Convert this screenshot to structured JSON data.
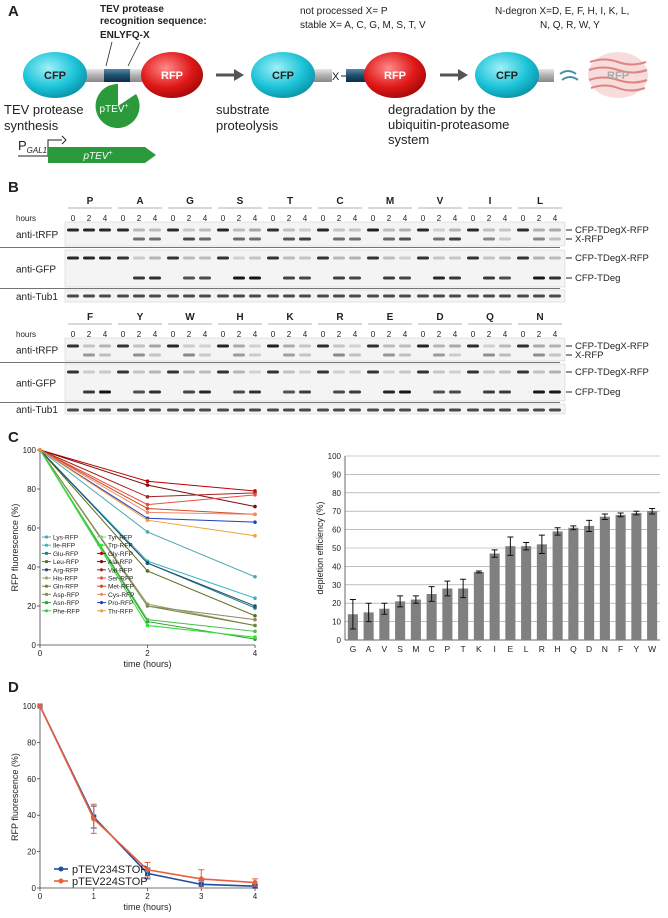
{
  "panel_labels": [
    "A",
    "B",
    "C",
    "D"
  ],
  "panel_a": {
    "tev_title_1": "TEV protease",
    "tev_title_2": "recognition sequence:",
    "sequence": "ENLYFQ-X",
    "not_processed": "not processed X= P",
    "stable": "stable X= A, C, G, M, S, T, V",
    "ndegron_1": "N-degron X=D, E, F, H, I, K, L,",
    "ndegron_2": "N, Q, R, W, Y",
    "cfp": "CFP",
    "rfp": "RFP",
    "x": "X",
    "synthesis_1": "TEV protease",
    "synthesis_2": "synthesis",
    "ptev": {
      "base": "pTEV",
      "sup": "+"
    },
    "promoter": {
      "base": "P",
      "sub": "GAL1"
    },
    "proteolysis_1": "substrate",
    "proteolysis_2": "proteolysis",
    "degradation_1": "degradation by the",
    "degradation_2": "ubiquitin-proteasome",
    "degradation_3": "system"
  },
  "panel_b": {
    "hours": "hours",
    "time_points": [
      0,
      2,
      4
    ],
    "rows": [
      "anti-tRFP",
      "anti-GFP",
      "anti-Tub1"
    ],
    "rfp_bands": [
      "CFP-TDegX-RFP",
      "X-RFP"
    ],
    "gfp_bands": [
      "CFP-TDegX-RFP",
      "CFP-TDeg"
    ],
    "groups": [
      [
        "P",
        "A",
        "G",
        "S",
        "T",
        "C",
        "M",
        "V",
        "I",
        "L"
      ],
      [
        "F",
        "Y",
        "W",
        "H",
        "K",
        "R",
        "E",
        "D",
        "Q",
        "N"
      ]
    ]
  },
  "chart_data": [
    {
      "type": "line",
      "x_label": "time (hours)",
      "y_label": "RFP fluorescence (%)",
      "x": [
        0,
        2,
        4
      ],
      "xlim": [
        0,
        4
      ],
      "xticks": [
        0,
        2,
        4
      ],
      "ylim": [
        0,
        100
      ],
      "yticks": [
        0,
        20,
        40,
        60,
        80,
        100
      ],
      "grid": false,
      "series": [
        {
          "name": "Lys-RFP",
          "color": "#4aa6b0",
          "values": [
            100,
            58,
            35
          ]
        },
        {
          "name": "Ile-RFP",
          "color": "#3cb4c4",
          "values": [
            100,
            43,
            24
          ]
        },
        {
          "name": "Glu-RFP",
          "color": "#1f7a8a",
          "values": [
            100,
            42,
            19
          ]
        },
        {
          "name": "Leu-RFP",
          "color": "#5c6b1e",
          "values": [
            100,
            38,
            15
          ]
        },
        {
          "name": "Arg-RFP",
          "color": "#1e4d6e",
          "values": [
            100,
            42,
            20
          ]
        },
        {
          "name": "His-RFP",
          "color": "#95a865",
          "values": [
            100,
            21,
            10
          ]
        },
        {
          "name": "Gln-RFP",
          "color": "#6f8040",
          "values": [
            100,
            20,
            10
          ]
        },
        {
          "name": "Asp-RFP",
          "color": "#8a8a5e",
          "values": [
            100,
            20,
            13
          ]
        },
        {
          "name": "Asn-RFP",
          "color": "#2e9e2e",
          "values": [
            100,
            12,
            3
          ]
        },
        {
          "name": "Phe-RFP",
          "color": "#4fbf4f",
          "values": [
            100,
            13,
            7
          ]
        },
        {
          "name": "Tyr-RFP",
          "color": "#74d474",
          "values": [
            100,
            10,
            4
          ]
        },
        {
          "name": "Trp-RFP",
          "color": "#38e038",
          "values": [
            100,
            10,
            4
          ]
        },
        {
          "name": "Gly-RFP",
          "color": "#c00000",
          "values": [
            100,
            84,
            79
          ]
        },
        {
          "name": "Ala-RFP",
          "color": "#7a0c0c",
          "values": [
            100,
            82,
            71
          ]
        },
        {
          "name": "Val-RFP",
          "color": "#a82020",
          "values": [
            100,
            76,
            78
          ]
        },
        {
          "name": "Ser-RFP",
          "color": "#e65040",
          "values": [
            100,
            72,
            77
          ]
        },
        {
          "name": "Met-RFP",
          "color": "#d24a1e",
          "values": [
            100,
            70,
            67
          ]
        },
        {
          "name": "Cys-RFP",
          "color": "#f28a68",
          "values": [
            100,
            68,
            67
          ]
        },
        {
          "name": "Pro-RFP",
          "color": "#2040c0",
          "values": [
            100,
            65,
            63
          ]
        },
        {
          "name": "Thr-RFP",
          "color": "#f0a030",
          "values": [
            100,
            64,
            56
          ]
        }
      ]
    },
    {
      "type": "bar",
      "y_label": "depletion efficiency (%)",
      "categories": [
        "G",
        "A",
        "V",
        "S",
        "M",
        "C",
        "P",
        "T",
        "K",
        "I",
        "E",
        "L",
        "R",
        "H",
        "Q",
        "D",
        "N",
        "F",
        "Y",
        "W"
      ],
      "values": [
        14,
        15,
        17,
        21,
        22,
        25,
        28,
        28,
        37,
        47,
        51,
        51,
        52,
        59,
        61,
        62,
        67,
        68,
        69,
        70
      ],
      "errors": [
        8,
        5,
        3,
        3,
        2,
        4,
        4,
        5,
        0.5,
        2,
        5,
        2,
        5,
        2,
        1,
        3,
        1.5,
        1,
        1,
        1.5
      ],
      "color": "#808080",
      "ylim": [
        0,
        100
      ],
      "yticks": [
        0,
        10,
        20,
        30,
        40,
        50,
        60,
        70,
        80,
        90,
        100
      ],
      "grid": true
    },
    {
      "type": "line",
      "x_label": "time (hours)",
      "y_label": "RFP fluorescence (%)",
      "x": [
        0,
        1,
        2,
        3,
        4
      ],
      "xlim": [
        0,
        4
      ],
      "xticks": [
        0,
        1,
        2,
        3,
        4
      ],
      "ylim": [
        0,
        100
      ],
      "yticks": [
        0,
        20,
        40,
        60,
        80,
        100
      ],
      "grid": false,
      "series": [
        {
          "name": "pTEV234STOP",
          "color": "#1f4e9c",
          "values": [
            100,
            39,
            8,
            2,
            1
          ],
          "errors": [
            0,
            6,
            3,
            2,
            1
          ]
        },
        {
          "name": "pTEV224STOP",
          "color": "#e8603c",
          "values": [
            100,
            38,
            10,
            5,
            3
          ],
          "errors": [
            0,
            8,
            4,
            5,
            2
          ]
        }
      ]
    }
  ]
}
